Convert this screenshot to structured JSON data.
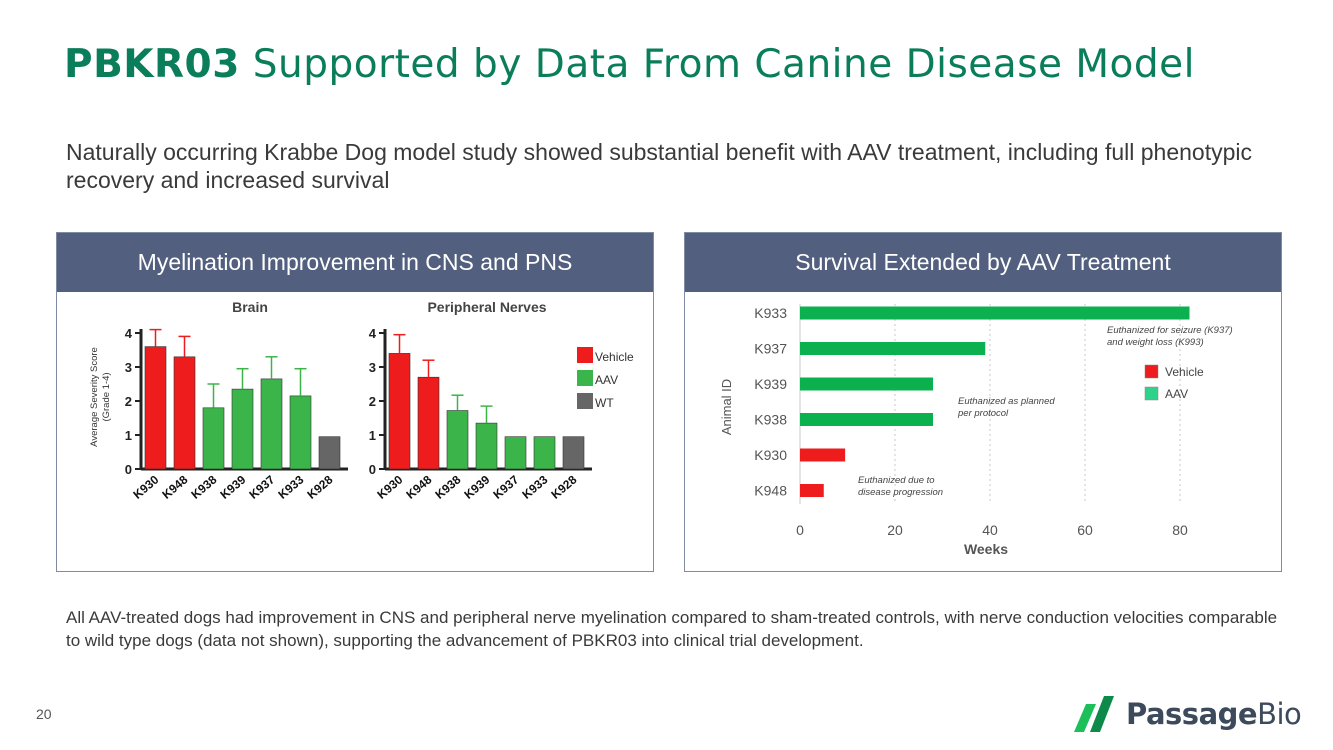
{
  "slide": {
    "title_bold": "PBKR03",
    "title_rest": " Supported by Data From Canine Disease Model",
    "subtitle": "Naturally occurring Krabbe Dog model study showed substantial benefit with AAV treatment, including full phenotypic recovery and increased survival",
    "footer_text": "All AAV-treated dogs had improvement in CNS and peripheral nerve myelination compared to sham-treated controls, with nerve conduction velocities comparable to wild type dogs (data not shown), supporting the advancement of PBKR03 into clinical trial development.",
    "page_number": "20",
    "logo": {
      "bold": "Passage",
      "rest": "Bio",
      "icon": "passage-bio-logo-icon",
      "colors": [
        "#1dbf5b",
        "#0d8a4a"
      ]
    }
  },
  "panels": {
    "left_header": "Myelination Improvement in CNS and PNS",
    "right_header": "Survival Extended by AAV Treatment"
  },
  "colors": {
    "vehicle": "#ee1c1c",
    "aav": "#3bb54a",
    "wt": "#666666",
    "survival_aav": "#0bb14e",
    "header_bg": "#525f7f",
    "title_green": "#0a7e5a"
  },
  "chart_data": [
    {
      "type": "bar",
      "title": "Brain",
      "ylabel": "Average Severity Score (Grade 1-4)",
      "ylabel_lines": [
        "Average Severity Score",
        "(Grade 1-4)"
      ],
      "ylim": [
        0,
        4
      ],
      "yticks": [
        "0",
        "1",
        "2",
        "3",
        "4"
      ],
      "categories": [
        "K930",
        "K948",
        "K938",
        "K939",
        "K937",
        "K933",
        "K928"
      ],
      "values": [
        3.6,
        3.3,
        1.8,
        2.35,
        2.65,
        2.15,
        0.95
      ],
      "errors": [
        0.5,
        0.6,
        0.7,
        0.6,
        0.65,
        0.8,
        0
      ],
      "groups": [
        "vehicle",
        "vehicle",
        "aav",
        "aav",
        "aav",
        "aav",
        "wt"
      ]
    },
    {
      "type": "bar",
      "title": "Peripheral Nerves",
      "ylim": [
        0,
        4
      ],
      "yticks": [
        "0",
        "1",
        "2",
        "3",
        "4"
      ],
      "categories": [
        "K930",
        "K948",
        "K938",
        "K939",
        "K937",
        "K933",
        "K928"
      ],
      "values": [
        3.4,
        2.7,
        1.72,
        1.35,
        0.95,
        0.95,
        0.95
      ],
      "errors": [
        0.55,
        0.5,
        0.45,
        0.5,
        0,
        0,
        0
      ],
      "groups": [
        "vehicle",
        "vehicle",
        "aav",
        "aav",
        "aav",
        "aav",
        "wt"
      ],
      "legend": [
        "Vehicle",
        "AAV",
        "WT"
      ]
    },
    {
      "type": "bar",
      "orientation": "horizontal",
      "xlabel": "Weeks",
      "ylabel": "Animal ID",
      "xlim": [
        0,
        80
      ],
      "xticks": [
        "0",
        "20",
        "40",
        "60",
        "80"
      ],
      "categories": [
        "K933",
        "K937",
        "K939",
        "K938",
        "K930",
        "K948"
      ],
      "values": [
        82,
        39,
        28,
        28,
        9.5,
        5
      ],
      "groups": [
        "aav",
        "aav",
        "aav",
        "aav",
        "vehicle",
        "vehicle"
      ],
      "legend": [
        "Vehicle",
        "AAV"
      ],
      "grid": "vertical dotted",
      "annotations": [
        {
          "lines": [
            "Euthanized for seizure (K937)",
            "and  weight loss (K993)"
          ]
        },
        {
          "lines": [
            "Euthanized as planned",
            "per protocol"
          ]
        },
        {
          "lines": [
            "Euthanized due to",
            "disease progression"
          ]
        }
      ]
    }
  ]
}
